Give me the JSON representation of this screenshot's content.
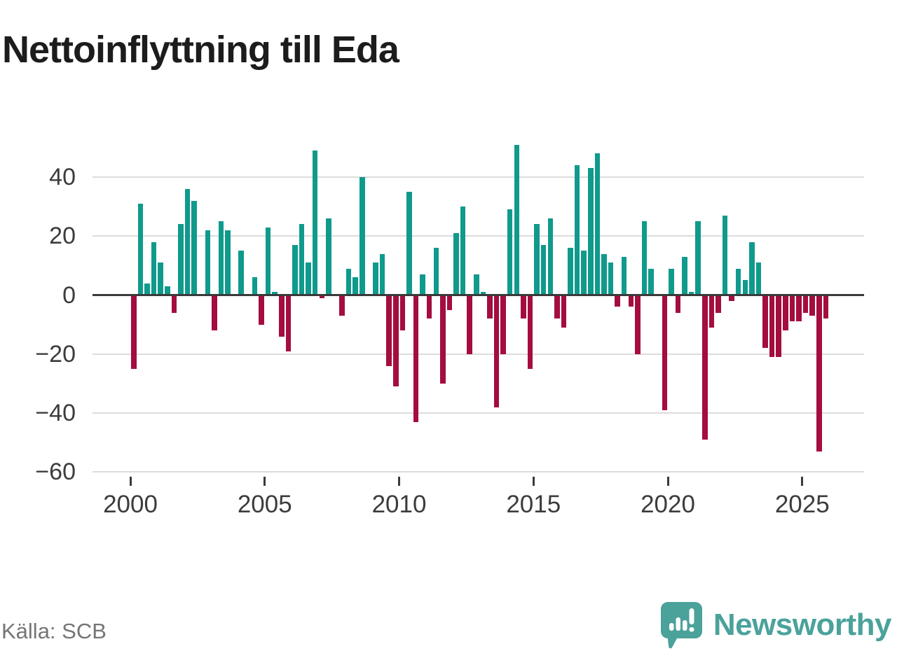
{
  "title": "Nettoinflyttning till Eda",
  "source": "Källa: SCB",
  "branding": {
    "name": "Newsworthy"
  },
  "colors": {
    "positive": "#0f9a8c",
    "negative": "#a40d3e",
    "grid": "#dcdcdc",
    "axis": "#3a3a3a",
    "tick_label": "#3c3c3c",
    "title_text": "#1c1c1c",
    "source_text": "#757575",
    "brand": "#4aa29b"
  },
  "chart_data": {
    "type": "bar",
    "title": "Nettoinflyttning till Eda",
    "xlabel": "",
    "ylabel": "",
    "frequency": "quarterly",
    "start_year": 2000,
    "start_quarter": 1,
    "x_tick_labels": [
      "2000",
      "2005",
      "2010",
      "2015",
      "2020",
      "2025"
    ],
    "y_ticks": [
      40,
      20,
      0,
      -20,
      -40,
      -60
    ],
    "ylim": [
      -60,
      52
    ],
    "grid": true,
    "legend": "none",
    "series_note": "one bar per quarter, 2000Q1 through 2025Q4; teal = positive net migration, dark red = negative",
    "values": [
      -25,
      31,
      4,
      18,
      11,
      3,
      -6,
      24,
      36,
      32,
      0,
      22,
      -12,
      25,
      22,
      0,
      15,
      0,
      6,
      -10,
      23,
      1,
      -14,
      -19,
      17,
      24,
      11,
      49,
      -1,
      26,
      0,
      -7,
      9,
      6,
      40,
      0,
      11,
      14,
      -24,
      -31,
      -12,
      35,
      -43,
      7,
      -8,
      16,
      -30,
      -5,
      21,
      30,
      -20,
      7,
      1,
      -8,
      -38,
      -20,
      29,
      51,
      -8,
      -25,
      24,
      17,
      26,
      -8,
      -11,
      16,
      44,
      15,
      43,
      48,
      14,
      11,
      -4,
      13,
      -4,
      -20,
      25,
      9,
      0,
      -39,
      9,
      -6,
      13,
      1,
      25,
      -49,
      -11,
      -6,
      27,
      -2,
      9,
      5,
      18,
      11,
      -18,
      -21,
      -21,
      -12,
      -9,
      -9,
      -6,
      -7,
      -53,
      -8
    ]
  }
}
